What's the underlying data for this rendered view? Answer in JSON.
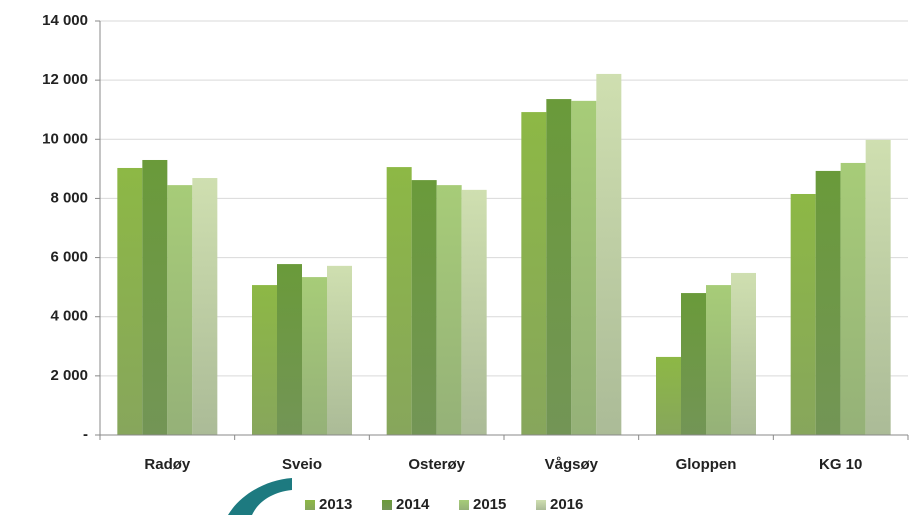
{
  "chart_data": {
    "type": "bar",
    "categories": [
      "Radøy",
      "Sveio",
      "Osterøy",
      "Vågsøy",
      "Gloppen",
      "KG 10"
    ],
    "series": [
      {
        "name": "2013",
        "color": "#8db845",
        "values": [
          9030,
          5070,
          9060,
          10920,
          2640,
          8150
        ]
      },
      {
        "name": "2014",
        "color": "#6a9a3a",
        "values": [
          9300,
          5780,
          8620,
          11360,
          4800,
          8930
        ]
      },
      {
        "name": "2015",
        "color": "#a7cc78",
        "values": [
          8450,
          5340,
          8450,
          11300,
          5070,
          9200
        ]
      },
      {
        "name": "2016",
        "color": "#cfdfb0",
        "values": [
          8690,
          5720,
          8290,
          12210,
          5480,
          9980
        ]
      }
    ],
    "ylim": [
      0,
      14000
    ],
    "yticks": [
      {
        "value": 0,
        "label": "-"
      },
      {
        "value": 2000,
        "label": "2 000"
      },
      {
        "value": 4000,
        "label": "4 000"
      },
      {
        "value": 6000,
        "label": "6 000"
      },
      {
        "value": 8000,
        "label": "8 000"
      },
      {
        "value": 10000,
        "label": "10 000"
      },
      {
        "value": 12000,
        "label": "12 000"
      },
      {
        "value": 14000,
        "label": "14 000"
      }
    ],
    "grid": true
  }
}
